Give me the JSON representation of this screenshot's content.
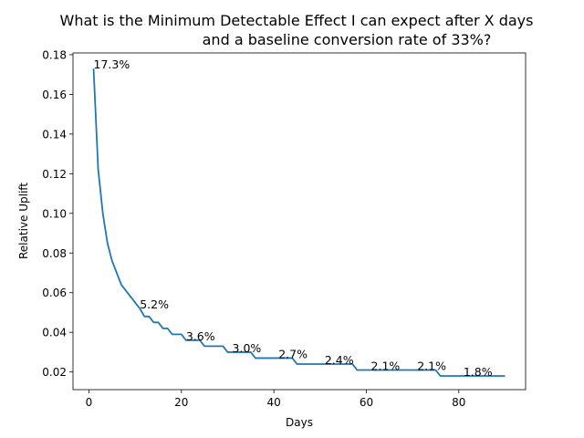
{
  "chart_data": {
    "type": "line",
    "title_lines": [
      "What is the Minimum Detectable Effect I can expect after X days",
      "and a baseline conversion rate of 33%?"
    ],
    "xlabel": "Days",
    "ylabel": "Relative Uplift",
    "xlim": [
      -3.45,
      94.45
    ],
    "ylim": [
      0.0111,
      0.1809
    ],
    "x_ticks": [
      0,
      20,
      40,
      60,
      80
    ],
    "y_ticks": [
      0.02,
      0.04,
      0.06,
      0.08,
      0.1,
      0.12,
      0.14,
      0.16,
      0.18
    ],
    "x_tick_labels": [
      "0",
      "20",
      "40",
      "60",
      "80"
    ],
    "y_tick_labels": [
      "0.02",
      "0.04",
      "0.06",
      "0.08",
      "0.10",
      "0.12",
      "0.14",
      "0.16",
      "0.18"
    ],
    "grid": false,
    "line_color": "#1f77b4",
    "series": [
      {
        "x": [
          1,
          2,
          3,
          4,
          5,
          6,
          7,
          8,
          9,
          10,
          11,
          12,
          13,
          14,
          15,
          16,
          17,
          18,
          19,
          20,
          21,
          22,
          23,
          24,
          25,
          26,
          27,
          28,
          29,
          30,
          31,
          32,
          33,
          34,
          35,
          36,
          37,
          38,
          39,
          40,
          41,
          42,
          43,
          44,
          45,
          46,
          47,
          48,
          49,
          50,
          51,
          52,
          53,
          54,
          55,
          56,
          57,
          58,
          59,
          60,
          61,
          62,
          63,
          64,
          65,
          66,
          67,
          68,
          69,
          70,
          71,
          72,
          73,
          74,
          75,
          76,
          77,
          78,
          79,
          80,
          81,
          82,
          83,
          84,
          85,
          86,
          87,
          88,
          89,
          90
        ],
        "y": [
          0.173,
          0.122,
          0.1,
          0.085,
          0.076,
          0.07,
          0.064,
          0.061,
          0.058,
          0.055,
          0.052,
          0.048,
          0.048,
          0.045,
          0.045,
          0.042,
          0.042,
          0.039,
          0.039,
          0.039,
          0.036,
          0.036,
          0.036,
          0.036,
          0.033,
          0.033,
          0.033,
          0.033,
          0.033,
          0.03,
          0.03,
          0.03,
          0.03,
          0.03,
          0.03,
          0.027,
          0.027,
          0.027,
          0.027,
          0.027,
          0.027,
          0.027,
          0.027,
          0.027,
          0.024,
          0.024,
          0.024,
          0.024,
          0.024,
          0.024,
          0.024,
          0.024,
          0.024,
          0.024,
          0.024,
          0.024,
          0.024,
          0.021,
          0.021,
          0.021,
          0.021,
          0.021,
          0.021,
          0.021,
          0.021,
          0.021,
          0.021,
          0.021,
          0.021,
          0.021,
          0.021,
          0.021,
          0.021,
          0.021,
          0.021,
          0.018,
          0.018,
          0.018,
          0.018,
          0.018,
          0.018,
          0.018,
          0.018,
          0.018,
          0.018,
          0.018,
          0.018,
          0.018,
          0.018,
          0.018
        ]
      }
    ],
    "annotations": [
      {
        "x": 1,
        "y": 0.173,
        "text": "17.3%"
      },
      {
        "x": 11,
        "y": 0.052,
        "text": "5.2%"
      },
      {
        "x": 21,
        "y": 0.036,
        "text": "3.6%"
      },
      {
        "x": 31,
        "y": 0.03,
        "text": "3.0%"
      },
      {
        "x": 41,
        "y": 0.027,
        "text": "2.7%"
      },
      {
        "x": 51,
        "y": 0.024,
        "text": "2.4%"
      },
      {
        "x": 61,
        "y": 0.021,
        "text": "2.1%"
      },
      {
        "x": 71,
        "y": 0.021,
        "text": "2.1%"
      },
      {
        "x": 81,
        "y": 0.018,
        "text": "1.8%"
      }
    ]
  }
}
